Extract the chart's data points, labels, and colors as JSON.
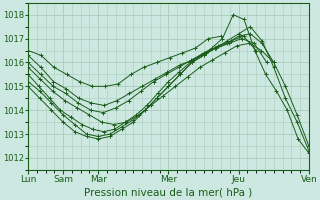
{
  "bg_color": "#cce8e0",
  "grid_color": "#aaccbb",
  "line_color": "#1a5c1a",
  "xlabel": "Pression niveau de la mer( hPa )",
  "ylim": [
    1011.5,
    1018.5
  ],
  "yticks": [
    1012,
    1013,
    1014,
    1015,
    1016,
    1017,
    1018
  ],
  "day_positions": [
    0,
    1,
    2,
    4,
    6,
    8
  ],
  "day_labels": [
    "Lun",
    "Sam",
    "Mar",
    "Mer",
    "Jeu",
    "Ven"
  ],
  "xlim": [
    0,
    8
  ],
  "series": [
    {
      "x0": 0,
      "x1": 5.5,
      "vals": [
        1016.5,
        1016.3,
        1015.8,
        1015.5,
        1015.2,
        1015.0,
        1015.0,
        1015.1,
        1015.5,
        1015.8,
        1016.0,
        1016.2,
        1016.4,
        1016.6,
        1017.0,
        1017.1
      ]
    },
    {
      "x0": 0,
      "x1": 6.5,
      "vals": [
        1016.3,
        1015.8,
        1015.2,
        1014.9,
        1014.5,
        1014.3,
        1014.2,
        1014.4,
        1014.7,
        1015.0,
        1015.3,
        1015.6,
        1015.9,
        1016.1,
        1016.4,
        1016.7,
        1016.9,
        1017.1,
        1016.5
      ]
    },
    {
      "x0": 0,
      "x1": 6.8,
      "vals": [
        1016.0,
        1015.5,
        1015.0,
        1014.7,
        1014.3,
        1014.0,
        1013.9,
        1014.1,
        1014.4,
        1014.8,
        1015.2,
        1015.5,
        1015.8,
        1016.1,
        1016.4,
        1016.6,
        1016.8,
        1017.0,
        1016.8,
        1016.0
      ]
    },
    {
      "x0": 0,
      "x1": 7.0,
      "vals": [
        1015.8,
        1015.3,
        1014.8,
        1014.4,
        1014.1,
        1013.8,
        1013.5,
        1013.4,
        1013.5,
        1013.8,
        1014.2,
        1014.6,
        1015.0,
        1015.4,
        1015.8,
        1016.1,
        1016.4,
        1016.7,
        1016.8,
        1016.5,
        1016.0
      ]
    },
    {
      "x0": 0,
      "x1": 8.0,
      "vals": [
        1015.5,
        1015.0,
        1014.5,
        1014.0,
        1013.7,
        1013.4,
        1013.2,
        1013.1,
        1013.2,
        1013.5,
        1013.8,
        1014.2,
        1014.7,
        1015.2,
        1015.6,
        1016.0,
        1016.3,
        1016.6,
        1017.0,
        1018.0,
        1017.8,
        1016.5,
        1015.5,
        1014.8,
        1014.0,
        1012.8,
        1012.2
      ]
    },
    {
      "x0": 0,
      "x1": 8.0,
      "vals": [
        1015.2,
        1014.8,
        1014.3,
        1013.8,
        1013.4,
        1013.0,
        1012.9,
        1013.0,
        1013.3,
        1013.6,
        1014.0,
        1014.5,
        1015.0,
        1015.5,
        1016.0,
        1016.3,
        1016.6,
        1016.8,
        1017.1,
        1017.2,
        1016.8,
        1016.0,
        1015.0,
        1013.8,
        1012.5
      ]
    },
    {
      "x0": 0,
      "x1": 8.0,
      "vals": [
        1015.0,
        1014.5,
        1014.0,
        1013.5,
        1013.1,
        1012.9,
        1012.8,
        1012.9,
        1013.2,
        1013.5,
        1014.0,
        1014.5,
        1015.0,
        1015.5,
        1016.0,
        1016.3,
        1016.6,
        1016.9,
        1017.2,
        1017.5,
        1016.9,
        1015.8,
        1014.5,
        1013.5,
        1012.3
      ]
    }
  ]
}
